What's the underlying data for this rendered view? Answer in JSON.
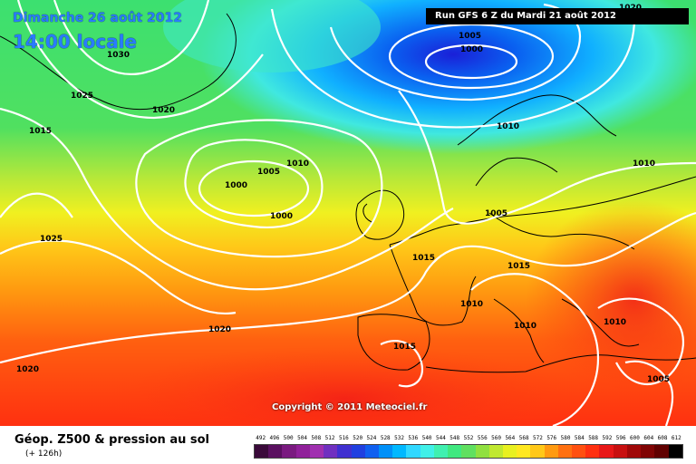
{
  "header": {
    "date": "Dimanche 26 août 2012",
    "time": "14:00 locale",
    "run": "Run GFS 6 Z du Mardi 21 août 2012"
  },
  "copyright": "Copyright © 2011 Meteociel.fr",
  "footer": {
    "title": "Géop. Z500 & pression au sol",
    "subtitle": "(+ 126h)"
  },
  "isobar_labels": [
    "1030",
    "1025",
    "1020",
    "1015",
    "1025",
    "1020",
    "1020",
    "1005",
    "1000",
    "1000",
    "1010",
    "1005",
    "1000",
    "1010",
    "1005",
    "1015",
    "1015",
    "1010",
    "1010",
    "1015",
    "1010",
    "1005",
    "1010",
    "1020"
  ],
  "scale": {
    "values": [
      "492",
      "496",
      "500",
      "504",
      "508",
      "512",
      "516",
      "520",
      "524",
      "528",
      "532",
      "536",
      "540",
      "544",
      "548",
      "552",
      "556",
      "560",
      "564",
      "568",
      "572",
      "576",
      "580",
      "584",
      "588",
      "592",
      "596",
      "600",
      "604",
      "608",
      "612"
    ],
    "colors": [
      "#3a0a3a",
      "#5a1060",
      "#7a1a80",
      "#90209a",
      "#a030b0",
      "#7030c0",
      "#4030d0",
      "#2040e0",
      "#1060f0",
      "#0090f8",
      "#00b8ff",
      "#30d8ff",
      "#40f0e8",
      "#40f0b0",
      "#40e880",
      "#60e060",
      "#90e040",
      "#c0e830",
      "#e8f020",
      "#ffe820",
      "#ffc818",
      "#ff9a10",
      "#ff7010",
      "#ff5010",
      "#ff3010",
      "#e81818",
      "#c81010",
      "#a00808",
      "#800404",
      "#600000",
      "#000000"
    ]
  }
}
